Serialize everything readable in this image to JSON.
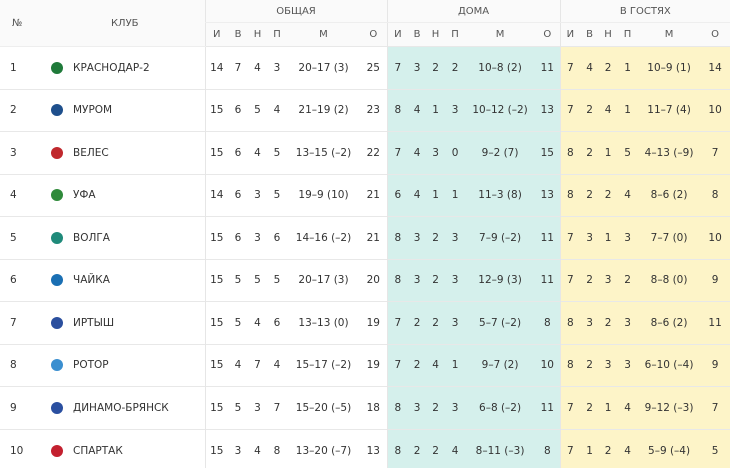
{
  "header": {
    "number": "№",
    "club": "КЛУБ",
    "groups": [
      "ОБЩАЯ",
      "ДОМА",
      "В ГОСТЯХ"
    ],
    "columns": [
      "И",
      "В",
      "Н",
      "П",
      "М",
      "О"
    ]
  },
  "table": {
    "rows": [
      {
        "pos": 1,
        "club": "КРАСНОДАР-2",
        "total": [
          14,
          7,
          4,
          3,
          "20–17 (3)",
          25
        ],
        "home": [
          7,
          3,
          2,
          2,
          "10–8 (2)",
          11
        ],
        "away": [
          7,
          4,
          2,
          1,
          "10–9 (1)",
          14
        ]
      },
      {
        "pos": 2,
        "club": "МУРОМ",
        "total": [
          15,
          6,
          5,
          4,
          "21–19 (2)",
          23
        ],
        "home": [
          8,
          4,
          1,
          3,
          "10–12 (–2)",
          13
        ],
        "away": [
          7,
          2,
          4,
          1,
          "11–7 (4)",
          10
        ]
      },
      {
        "pos": 3,
        "club": "ВЕЛЕС",
        "total": [
          15,
          6,
          4,
          5,
          "13–15 (–2)",
          22
        ],
        "home": [
          7,
          4,
          3,
          0,
          "9–2 (7)",
          15
        ],
        "away": [
          8,
          2,
          1,
          5,
          "4–13 (–9)",
          7
        ]
      },
      {
        "pos": 4,
        "club": "УФА",
        "total": [
          14,
          6,
          3,
          5,
          "19–9 (10)",
          21
        ],
        "home": [
          6,
          4,
          1,
          1,
          "11–3 (8)",
          13
        ],
        "away": [
          8,
          2,
          2,
          4,
          "8–6 (2)",
          8
        ]
      },
      {
        "pos": 5,
        "club": "ВОЛГА",
        "total": [
          15,
          6,
          3,
          6,
          "14–16 (–2)",
          21
        ],
        "home": [
          8,
          3,
          2,
          3,
          "7–9 (–2)",
          11
        ],
        "away": [
          7,
          3,
          1,
          3,
          "7–7 (0)",
          10
        ]
      },
      {
        "pos": 6,
        "club": "ЧАЙКА",
        "total": [
          15,
          5,
          5,
          5,
          "20–17 (3)",
          20
        ],
        "home": [
          8,
          3,
          2,
          3,
          "12–9 (3)",
          11
        ],
        "away": [
          7,
          2,
          3,
          2,
          "8–8 (0)",
          9
        ]
      },
      {
        "pos": 7,
        "club": "ИРТЫШ",
        "total": [
          15,
          5,
          4,
          6,
          "13–13 (0)",
          19
        ],
        "home": [
          7,
          2,
          2,
          3,
          "5–7 (–2)",
          8
        ],
        "away": [
          8,
          3,
          2,
          3,
          "8–6 (2)",
          11
        ]
      },
      {
        "pos": 8,
        "club": "РОТОР",
        "total": [
          15,
          4,
          7,
          4,
          "15–17 (–2)",
          19
        ],
        "home": [
          7,
          2,
          4,
          1,
          "9–7 (2)",
          10
        ],
        "away": [
          8,
          2,
          3,
          3,
          "6–10 (–4)",
          9
        ]
      },
      {
        "pos": 9,
        "club": "ДИНАМО-БРЯНСК",
        "total": [
          15,
          5,
          3,
          7,
          "15–20 (–5)",
          18
        ],
        "home": [
          8,
          3,
          2,
          3,
          "6–8 (–2)",
          11
        ],
        "away": [
          7,
          2,
          1,
          4,
          "9–12 (–3)",
          7
        ]
      },
      {
        "pos": 10,
        "club": "СПАРТАК",
        "total": [
          15,
          3,
          4,
          8,
          "13–20 (–7)",
          13
        ],
        "home": [
          8,
          2,
          2,
          4,
          "8–11 (–3)",
          8
        ],
        "away": [
          7,
          1,
          2,
          4,
          "5–9 (–4)",
          5
        ]
      }
    ]
  }
}
